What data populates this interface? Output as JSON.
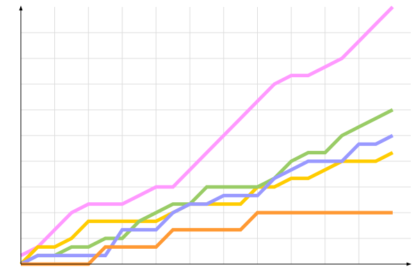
{
  "chart_data": {
    "type": "line",
    "title": "",
    "xlabel": "",
    "ylabel": "",
    "x": [
      0,
      1,
      2,
      3,
      4,
      5,
      6,
      7,
      8,
      9,
      10,
      11,
      12,
      13,
      14,
      15,
      16,
      17,
      18,
      19,
      20,
      21,
      22
    ],
    "xlim": [
      0,
      22
    ],
    "ylim": [
      0,
      30
    ],
    "x_grid_step": 2,
    "y_grid_step": 3,
    "grid": true,
    "legend": "none",
    "series": [
      {
        "color": "#ff99ff",
        "values": [
          1,
          2,
          4,
          6,
          7,
          7,
          7,
          8,
          9,
          9,
          11,
          13,
          15,
          17,
          19,
          21,
          22,
          22,
          23,
          24,
          26,
          28,
          30
        ]
      },
      {
        "color": "#ffcc00",
        "values": [
          0,
          2,
          2,
          3,
          5,
          5,
          5,
          5,
          5,
          6,
          7,
          7,
          7,
          7,
          9,
          9,
          10,
          10,
          11,
          12,
          12,
          12,
          13
        ]
      },
      {
        "color": "#99cc66",
        "values": [
          0,
          1,
          1,
          2,
          2,
          3,
          3,
          5,
          6,
          7,
          7,
          9,
          9,
          9,
          9,
          10,
          12,
          13,
          13,
          15,
          16,
          17,
          18
        ]
      },
      {
        "color": "#9999ff",
        "values": [
          0,
          1,
          1,
          1,
          1,
          1,
          4,
          4,
          4,
          6,
          7,
          7,
          8,
          8,
          8,
          10,
          11,
          12,
          12,
          12,
          14,
          14,
          15
        ]
      },
      {
        "color": "#ff9933",
        "values": [
          0,
          0,
          0,
          0,
          0,
          2,
          2,
          2,
          2,
          4,
          4,
          4,
          4,
          4,
          6,
          6,
          6,
          6,
          6,
          6,
          6,
          6,
          6
        ]
      }
    ]
  }
}
